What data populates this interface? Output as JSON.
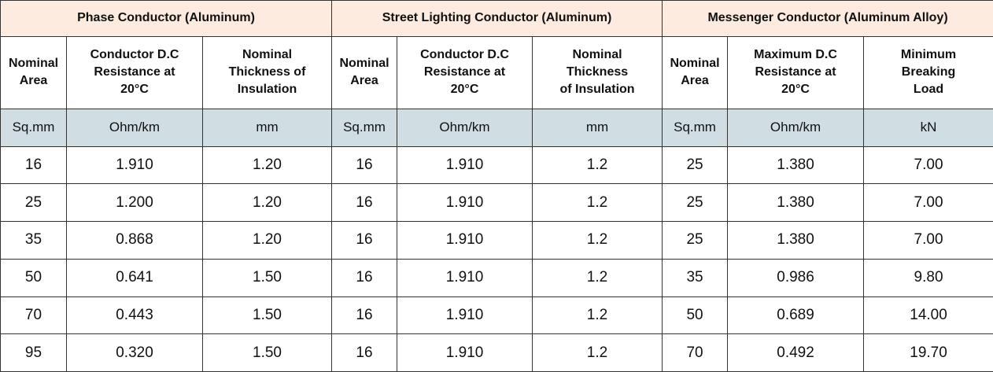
{
  "table": {
    "groups": [
      "Phase Conductor (Aluminum)",
      "Street Lighting Conductor (Aluminum)",
      "Messenger Conductor (Aluminum Alloy)"
    ],
    "headers": [
      "Nominal\nArea",
      "Conductor D.C\nResistance at\n20°C",
      "Nominal\nThickness of\nInsulation",
      "Nominal\nArea",
      "Conductor D.C\nResistance at\n20°C",
      "Nominal\nThickness\nof Insulation",
      "Nominal\nArea",
      "Maximum D.C\nResistance at\n20°C",
      "Minimum\nBreaking\nLoad"
    ],
    "units": [
      "Sq.mm",
      "Ohm/km",
      "mm",
      "Sq.mm",
      "Ohm/km",
      "mm",
      "Sq.mm",
      "Ohm/km",
      "kN"
    ],
    "rows": [
      [
        "16",
        "1.910",
        "1.20",
        "16",
        "1.910",
        "1.2",
        "25",
        "1.380",
        "7.00"
      ],
      [
        "25",
        "1.200",
        "1.20",
        "16",
        "1.910",
        "1.2",
        "25",
        "1.380",
        "7.00"
      ],
      [
        "35",
        "0.868",
        "1.20",
        "16",
        "1.910",
        "1.2",
        "25",
        "1.380",
        "7.00"
      ],
      [
        "50",
        "0.641",
        "1.50",
        "16",
        "1.910",
        "1.2",
        "35",
        "0.986",
        "9.80"
      ],
      [
        "70",
        "0.443",
        "1.50",
        "16",
        "1.910",
        "1.2",
        "50",
        "0.689",
        "14.00"
      ],
      [
        "95",
        "0.320",
        "1.50",
        "16",
        "1.910",
        "1.2",
        "70",
        "0.492",
        "19.70"
      ]
    ]
  }
}
